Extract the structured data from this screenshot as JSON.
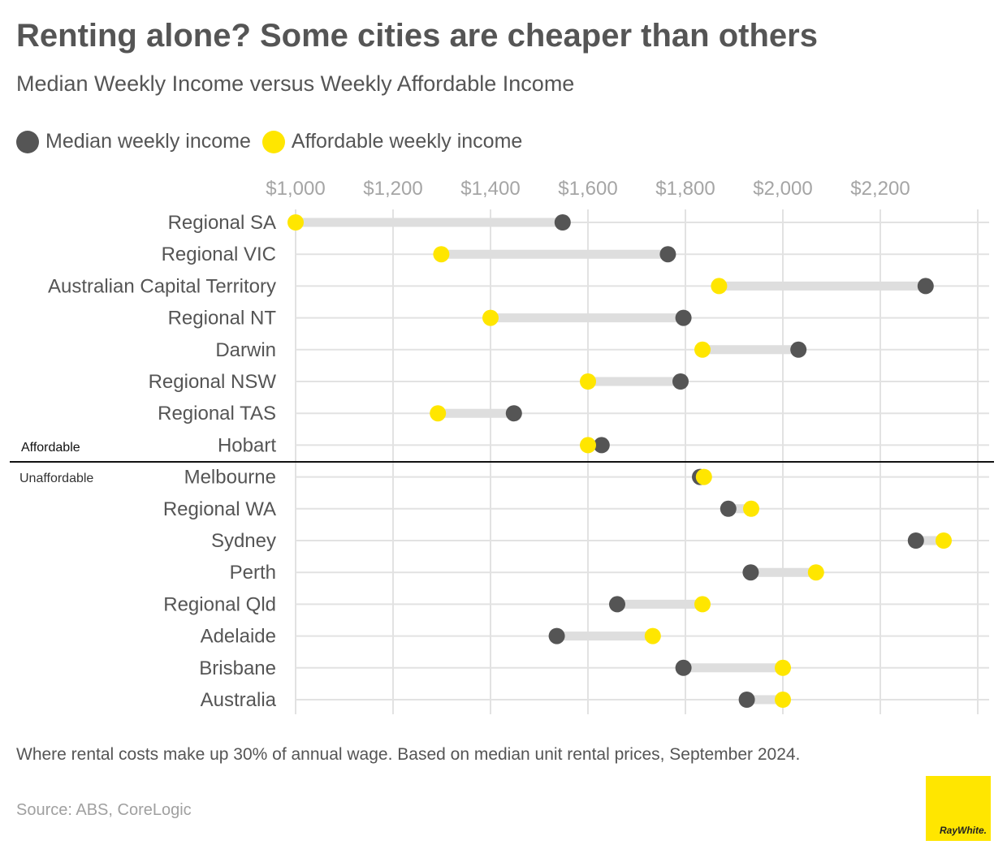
{
  "title": "Renting alone? Some cities are cheaper than others",
  "subtitle": "Median Weekly Income versus Weekly Affordable Income",
  "legend": [
    {
      "label": "Median weekly income",
      "color": "#555555"
    },
    {
      "label": "Affordable weekly income",
      "color": "#ffe600"
    }
  ],
  "chart_data": {
    "type": "dumbbell",
    "x_ticks": [
      "$1,000",
      "$1,200",
      "$1,400",
      "$1,600",
      "$1,800",
      "$2,000",
      "$2,200"
    ],
    "x_tick_values": [
      1000,
      1200,
      1400,
      1600,
      1800,
      2000,
      2200
    ],
    "xlim": [
      1000,
      2400
    ],
    "grid": true,
    "series": [
      {
        "name": "Median weekly income",
        "color": "#555555"
      },
      {
        "name": "Affordable weekly income",
        "color": "#ffe600"
      }
    ],
    "categories": [
      "Regional SA",
      "Regional VIC",
      "Australian Capital Territory",
      "Regional NT",
      "Darwin",
      "Regional NSW",
      "Regional TAS",
      "Hobart",
      "Melbourne",
      "Regional WA",
      "Sydney",
      "Perth",
      "Regional Qld",
      "Adelaide",
      "Brisbane",
      "Australia"
    ],
    "median": [
      1548,
      1764,
      2293,
      1796,
      2032,
      1790,
      1448,
      1628,
      1830,
      1888,
      2273,
      1934,
      1660,
      1536,
      1796,
      1926
    ],
    "affordable": [
      1000,
      1299,
      1869,
      1400,
      1835,
      1600,
      1292,
      1600,
      1838,
      1935,
      2330,
      2068,
      1835,
      1733,
      2000,
      2000
    ],
    "annotations": [
      {
        "label": "Affordable",
        "after_row": 7
      },
      {
        "label": "Unaffordable",
        "after_row": 7
      }
    ]
  },
  "footnote": "Where rental costs make up 30% of annual wage. Based on median unit rental prices, September 2024.",
  "source": "Source: ABS, CoreLogic",
  "logo": {
    "text": "RayWhite."
  }
}
